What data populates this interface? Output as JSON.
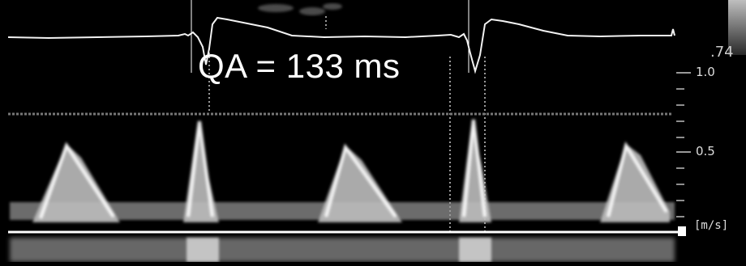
{
  "measurement": "QA = 133 ms",
  "velocity_scale": {
    "tick_high": "1.0",
    "tick_mid": "0.5",
    "unit": "[m/s]",
    "corner_value": ".74"
  },
  "colors": {
    "background": "#000000",
    "trace": "#ffffff",
    "doppler": "#e8e8e8"
  }
}
